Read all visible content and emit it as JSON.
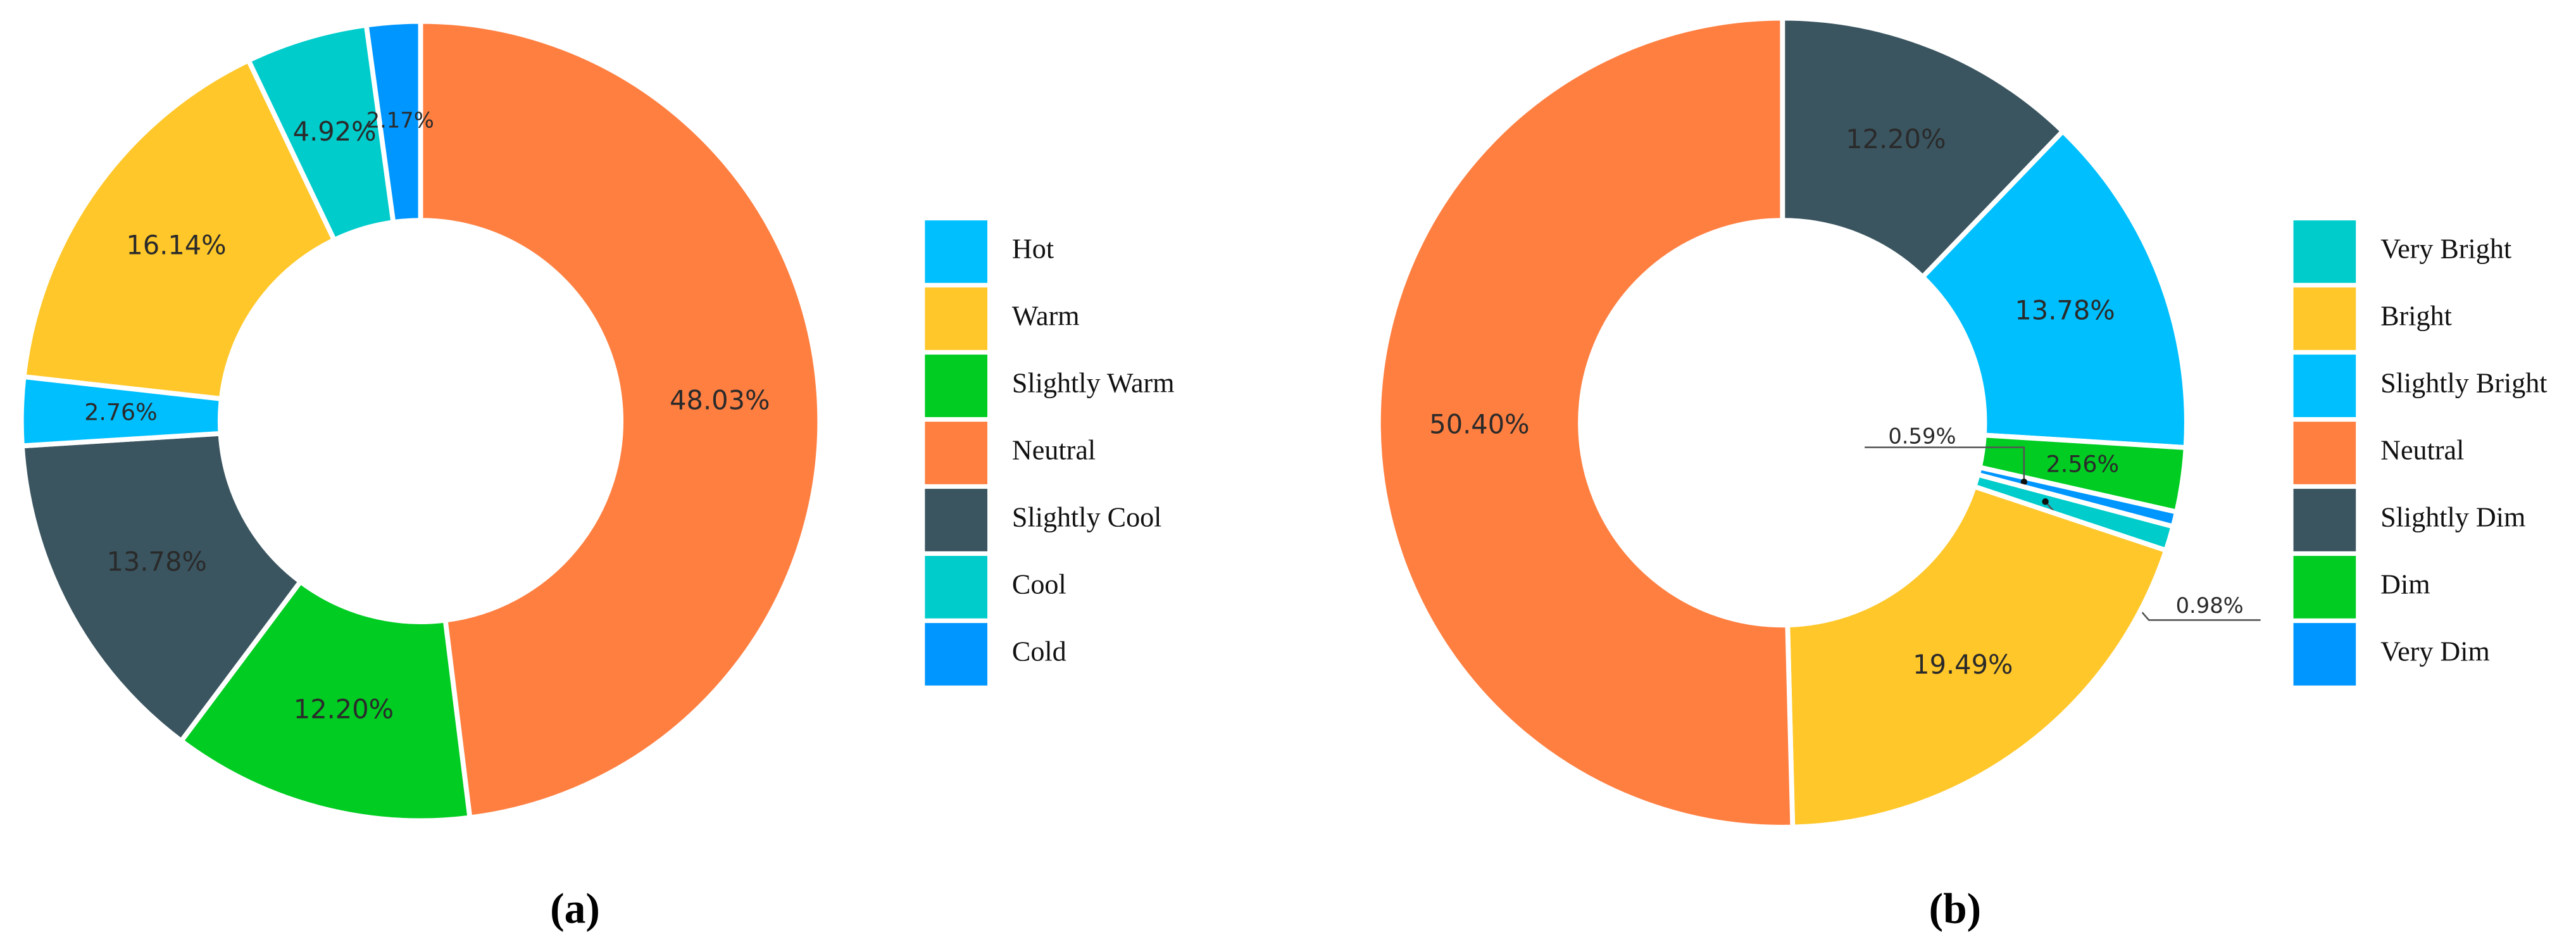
{
  "chart_data": [
    {
      "type": "donut",
      "categories": [
        "Neutral",
        "Slightly Warm",
        "Slightly Cool",
        "Hot",
        "Warm",
        "Cool",
        "Cold"
      ],
      "values": [
        48.03,
        12.2,
        13.78,
        2.76,
        16.14,
        4.92,
        2.17
      ],
      "value_labels": [
        "48.03%",
        "12.20%",
        "13.78%",
        "2.76%",
        "16.14%",
        "4.92%",
        "2.17%"
      ],
      "colors": [
        "#ff7f41",
        "#00cc22",
        "#3a5560",
        "#00bfff",
        "#ffc72a",
        "#00cccc",
        "#0096ff"
      ],
      "legend": [
        "Hot",
        "Warm",
        "Slightly Warm",
        "Neutral",
        "Slightly Cool",
        "Cool",
        "Cold"
      ],
      "caption": "(a)"
    },
    {
      "type": "donut",
      "categories": [
        "Slightly Dim",
        "Slightly Bright",
        "Dim",
        "Very Dim",
        "Very Bright",
        "Bright",
        "Neutral"
      ],
      "values": [
        12.2,
        13.78,
        2.56,
        0.59,
        0.98,
        19.49,
        50.4
      ],
      "value_labels": [
        "12.20%",
        "13.78%",
        "2.56%",
        "0.59%",
        "0.98%",
        "19.49%",
        "50.40%"
      ],
      "colors": [
        "#3a5560",
        "#00bfff",
        "#00cc22",
        "#0096ff",
        "#00cccc",
        "#ffc72a",
        "#ff7f41"
      ],
      "legend": [
        "Very Bright",
        "Bright",
        "Slightly Bright",
        "Neutral",
        "Slightly Dim",
        "Dim",
        "Very Dim"
      ],
      "caption": "(b)"
    }
  ]
}
